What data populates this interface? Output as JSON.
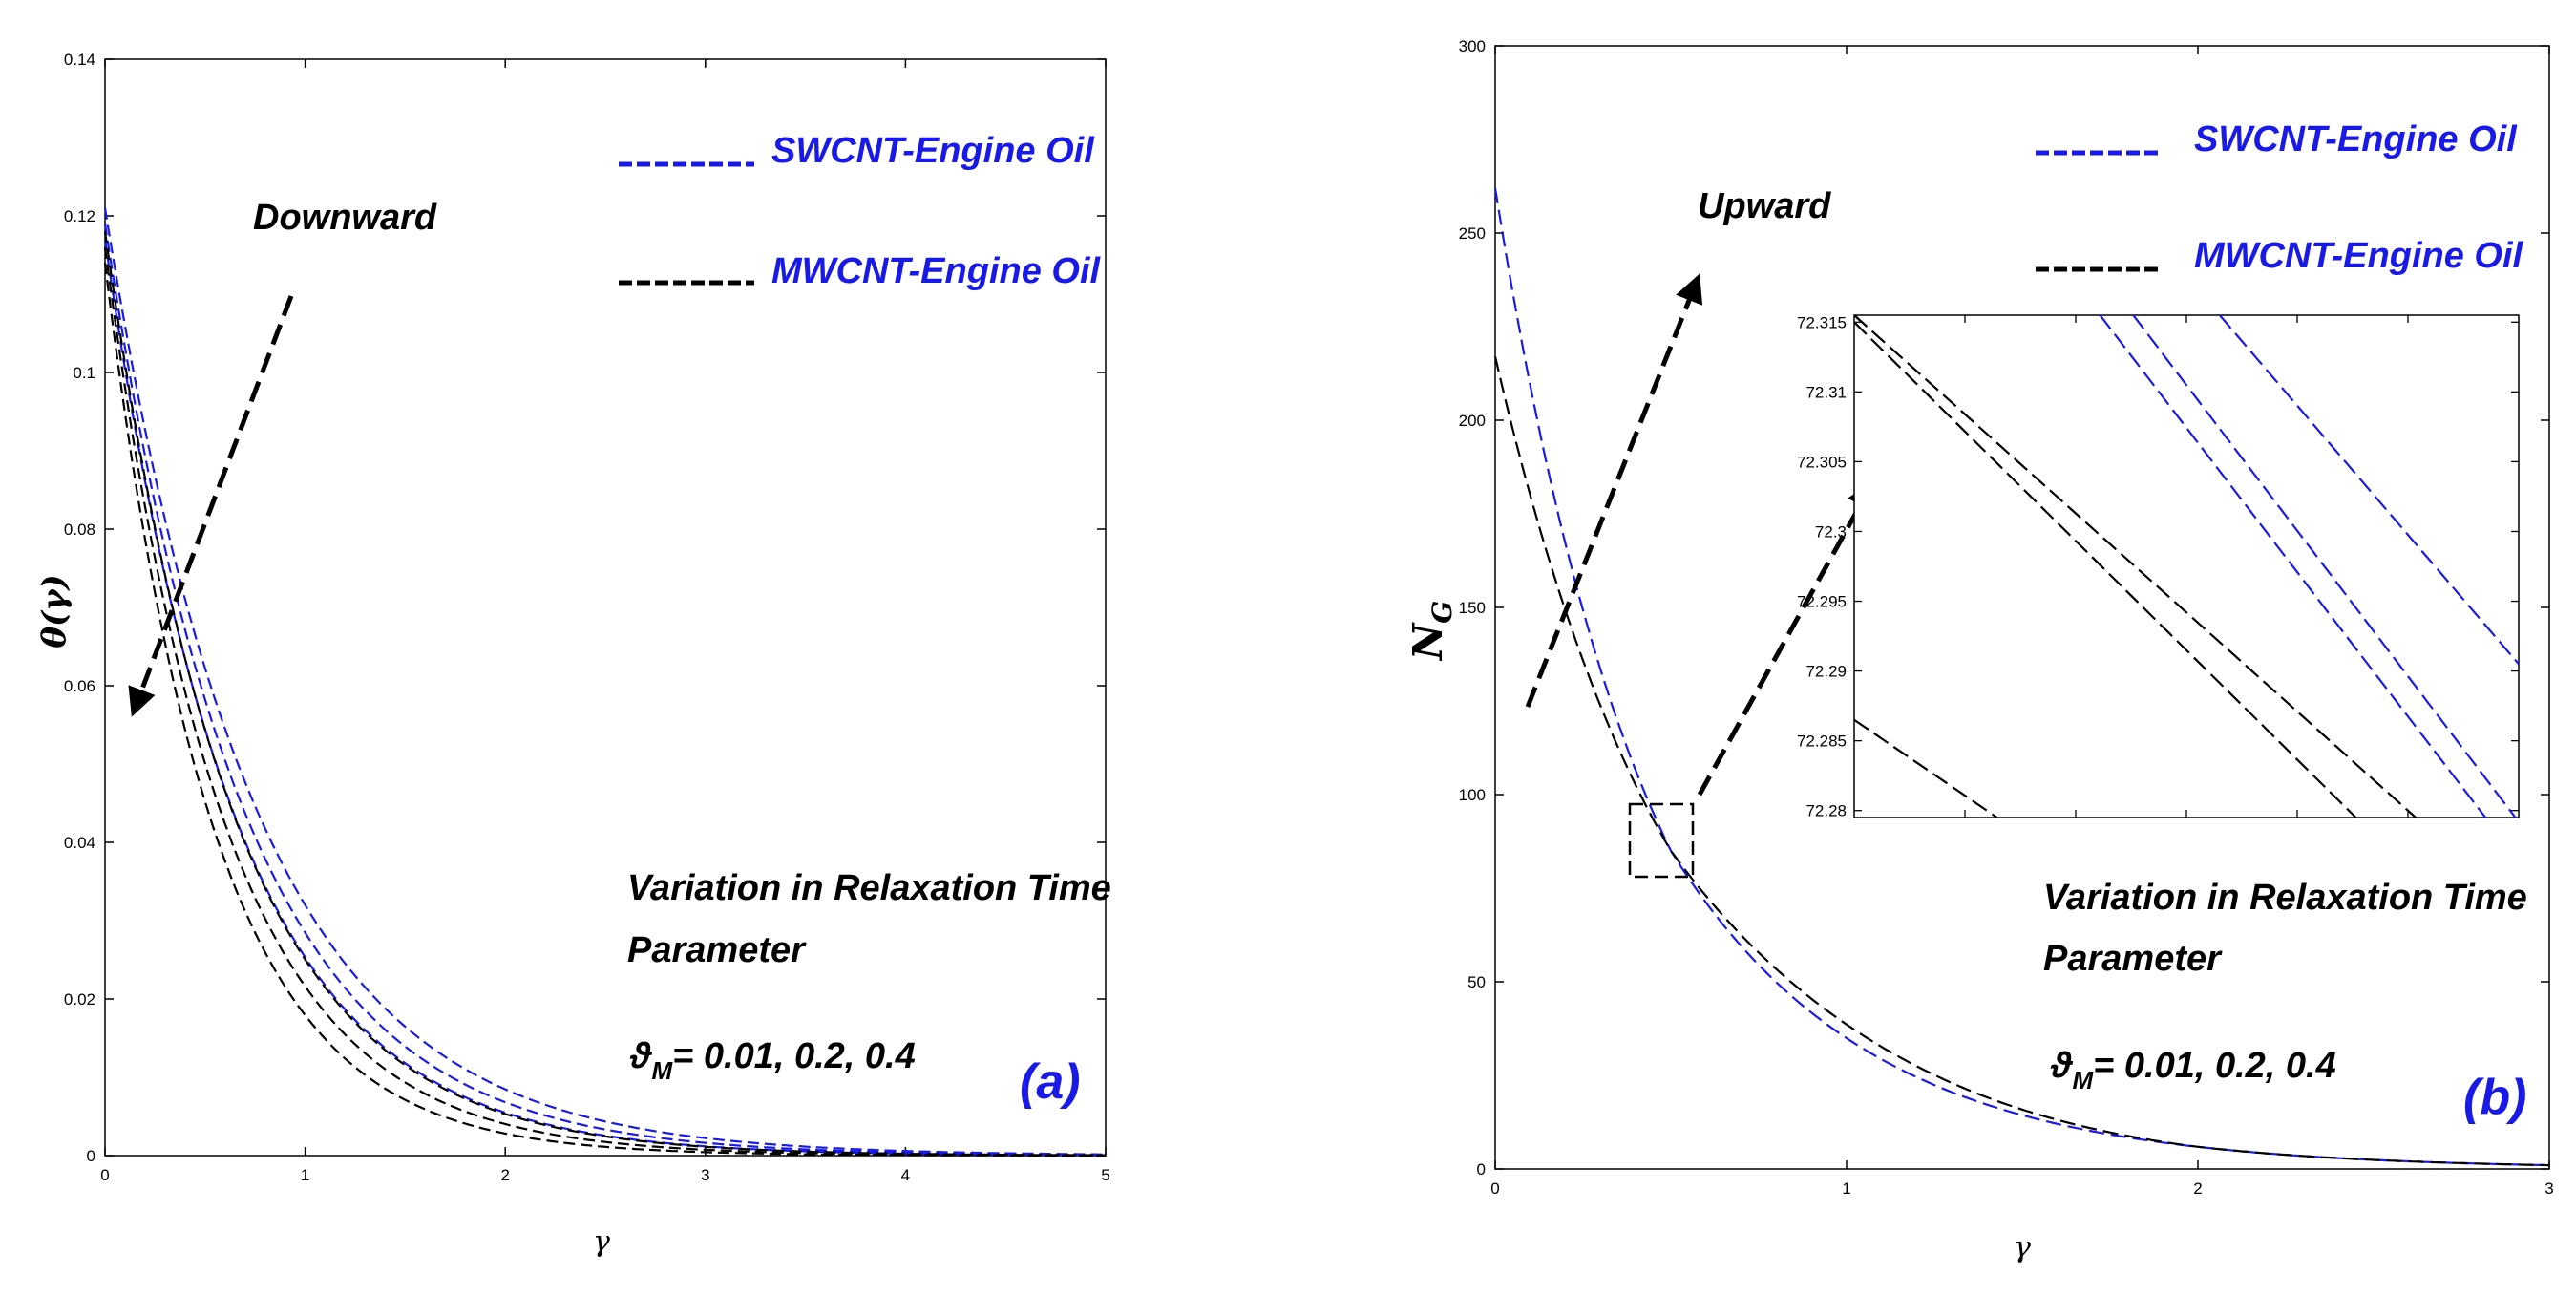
{
  "chart_data": [
    {
      "id": "a",
      "type": "line",
      "panel_label": "(a)",
      "xlabel": "γ",
      "ylabel": "θ(γ)",
      "xlim": [
        0,
        5
      ],
      "ylim": [
        0,
        0.14
      ],
      "xticks": [
        "0",
        "1",
        "2",
        "3",
        "4",
        "5"
      ],
      "yticks": [
        "0",
        "0.02",
        "0.04",
        "0.06",
        "0.08",
        "0.1",
        "0.12",
        "0.14"
      ],
      "legend": [
        {
          "label": "SWCNT-Engine Oil",
          "color": "#1a1ae6"
        },
        {
          "label": "MWCNT-Engine Oil",
          "color": "#000000"
        }
      ],
      "arrow_label": "Downward",
      "annotation_lines": [
        "Variation in Relaxation Time",
        "Parameter"
      ],
      "param_symbol": "ϑ",
      "param_subscript": "M",
      "param_values": "= 0.01, 0.2, 0.4",
      "series": [
        {
          "name": "SWCNT-Engine Oil, ϑM=0.01",
          "color": "#1a1ae6",
          "y0": 0.121,
          "rate": 1.33
        },
        {
          "name": "SWCNT-Engine Oil, ϑM=0.2",
          "color": "#1a1ae6",
          "y0": 0.119,
          "rate": 1.43
        },
        {
          "name": "SWCNT-Engine Oil, ϑM=0.4",
          "color": "#1a1ae6",
          "y0": 0.117,
          "rate": 1.53
        },
        {
          "name": "MWCNT-Engine Oil, ϑM=0.01",
          "color": "#000000",
          "y0": 0.118,
          "rate": 1.55
        },
        {
          "name": "MWCNT-Engine Oil, ϑM=0.2",
          "color": "#000000",
          "y0": 0.116,
          "rate": 1.68
        },
        {
          "name": "MWCNT-Engine Oil, ϑM=0.4",
          "color": "#000000",
          "y0": 0.114,
          "rate": 1.85
        }
      ]
    },
    {
      "id": "b",
      "type": "line",
      "panel_label": "(b)",
      "xlabel": "γ",
      "ylabel": "N",
      "ylabel_subscript": "G",
      "xlim": [
        0,
        3
      ],
      "ylim": [
        0,
        300
      ],
      "xticks": [
        "0",
        "1",
        "2",
        "3"
      ],
      "yticks": [
        "0",
        "50",
        "100",
        "150",
        "200",
        "250",
        "300"
      ],
      "legend": [
        {
          "label": "SWCNT-Engine Oil",
          "color": "#1a1ae6"
        },
        {
          "label": "MWCNT-Engine Oil",
          "color": "#000000"
        }
      ],
      "arrow_label": "Upward",
      "annotation_lines": [
        "Variation in Relaxation Time",
        "Parameter"
      ],
      "param_symbol": "ϑ",
      "param_subscript": "M",
      "param_values": "= 0.01, 0.2, 0.4",
      "series": [
        {
          "name": "SWCNT-Engine Oil",
          "color": "#1a1ae6",
          "y0": 262,
          "rate": 2.2,
          "knee": 0.5,
          "kneeY": 85
        },
        {
          "name": "MWCNT-Engine Oil",
          "color": "#000000",
          "y0": 217,
          "rate": 1.65,
          "knee": 0.5,
          "kneeY": 85
        }
      ],
      "inset": {
        "xticks": [],
        "yticks": [
          "72.28",
          "72.285",
          "72.29",
          "72.295",
          "72.3",
          "72.305",
          "72.31",
          "72.315"
        ],
        "ylim": [
          72.2795,
          72.3155
        ],
        "lines": [
          {
            "color": "#000000",
            "y_left": 72.315,
            "y_right": 72.2795,
            "x_end_frac": 0.755
          },
          {
            "color": "#000000",
            "y_left": 72.3155,
            "y_right": 72.2795,
            "x_end_frac": 0.845
          },
          {
            "color": "#000000",
            "y_left": 72.2865,
            "y_right": 72.2795,
            "x_end_frac": 0.215
          },
          {
            "color": "#1a1ae6",
            "y_left": 72.3155,
            "y_right": 72.2795,
            "x_start_frac": 0.37,
            "x_end_frac": 0.95
          },
          {
            "color": "#1a1ae6",
            "y_left": 72.3155,
            "y_right": 72.2795,
            "x_start_frac": 0.42,
            "x_end_frac": 0.995
          },
          {
            "color": "#1a1ae6",
            "y_left": 72.3155,
            "y_right": 72.2905,
            "x_start_frac": 0.55,
            "x_end_frac": 1.0
          }
        ]
      }
    }
  ]
}
